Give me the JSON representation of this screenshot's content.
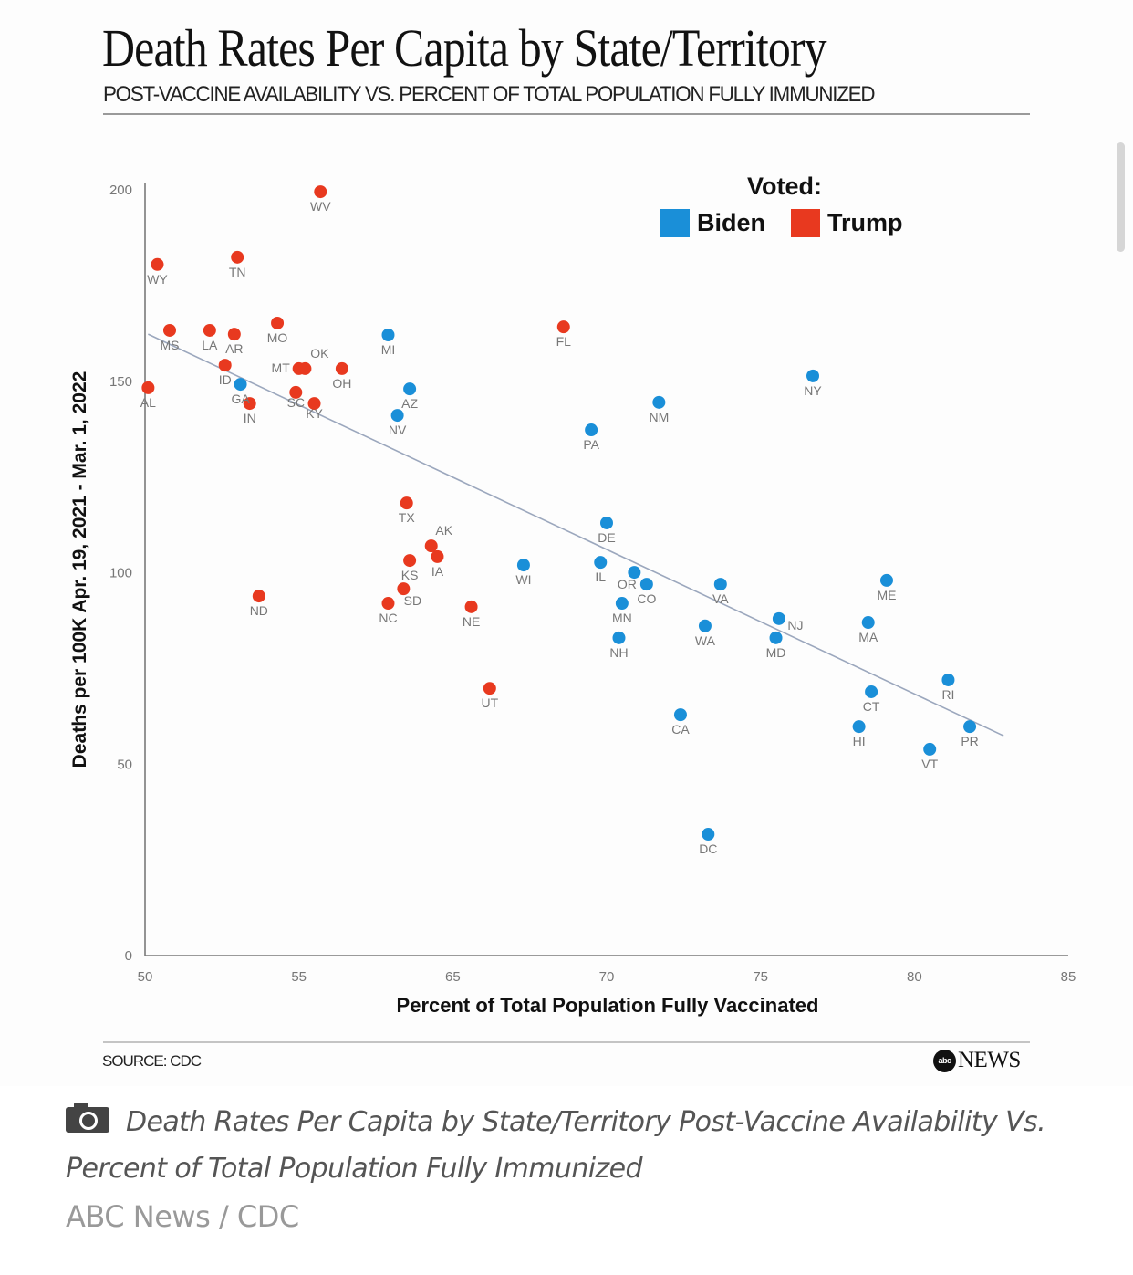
{
  "header": {
    "title": "Death Rates Per Capita by State/Territory",
    "subtitle": "POST-VACCINE AVAILABILITY VS. PERCENT OF TOTAL POPULATION FULLY IMMUNIZED"
  },
  "footer": {
    "source": "SOURCE: CDC",
    "logo_mark": "abc",
    "logo_text": "NEWS"
  },
  "caption": {
    "icon": "camera-icon",
    "text": "Death Rates Per Capita by State/Territory Post-Vaccine Availability Vs. Percent of Total Population Fully Immunized",
    "credit": "ABC News / CDC"
  },
  "chart_data": {
    "type": "scatter",
    "title": "Death Rates Per Capita by State/Territory",
    "subtitle": "POST-VACCINE AVAILABILITY VS. PERCENT OF TOTAL POPULATION FULLY IMMUNIZED",
    "xlabel": "Percent of Total Population Fully Vaccinated",
    "ylabel": "Deaths per 100K Apr. 19, 2021 - Mar. 1, 2022",
    "xlim": [
      50,
      85
    ],
    "ylim": [
      0,
      200
    ],
    "x_ticks": [
      50,
      55,
      60,
      65,
      70,
      75,
      80,
      85
    ],
    "x_tick_labels": [
      "50",
      "55",
      "65",
      "70",
      "75",
      "80",
      "85"
    ],
    "x_tick_label_positions": [
      50,
      55,
      60,
      65,
      70,
      75,
      80,
      85
    ],
    "x_tick_note": "tick labels printed as shown; '60' position is labeled '65', all later labels shifted",
    "y_ticks": [
      0,
      50,
      100,
      150,
      200
    ],
    "y_tick_labels": [
      "0",
      "50",
      "100",
      "150",
      "200"
    ],
    "grid": false,
    "legend": {
      "title": "Voted:",
      "placement": "top-right",
      "entries": [
        {
          "name": "Biden",
          "color": "#1a8fd8"
        },
        {
          "name": "Trump",
          "color": "#e8391f"
        }
      ]
    },
    "trendline": {
      "x": [
        50.1,
        77.9
      ],
      "y": [
        162.3,
        57.4
      ],
      "color": "#9ba7bd"
    },
    "series": [
      {
        "name": "Trump",
        "color": "#e8391f",
        "points": [
          {
            "label": "WV",
            "x": 55.7,
            "y": 199.5
          },
          {
            "label": "WY",
            "x": 50.4,
            "y": 180.5
          },
          {
            "label": "TN",
            "x": 53.0,
            "y": 182.4
          },
          {
            "label": "MS",
            "x": 50.8,
            "y": 163.3
          },
          {
            "label": "LA",
            "x": 52.1,
            "y": 163.3
          },
          {
            "label": "AR",
            "x": 52.9,
            "y": 162.3
          },
          {
            "label": "MO",
            "x": 54.3,
            "y": 165.2
          },
          {
            "label": "FL",
            "x": 63.6,
            "y": 164.2
          },
          {
            "label": "ID",
            "x": 52.6,
            "y": 154.2
          },
          {
            "label": "MT",
            "x": 55.0,
            "y": 153.3
          },
          {
            "label": "OK",
            "x": 55.2,
            "y": 153.3
          },
          {
            "label": "OH",
            "x": 56.4,
            "y": 153.3
          },
          {
            "label": "AL",
            "x": 50.1,
            "y": 148.3
          },
          {
            "label": "SC",
            "x": 54.9,
            "y": 147.1
          },
          {
            "label": "IN",
            "x": 53.4,
            "y": 144.2
          },
          {
            "label": "KY",
            "x": 55.5,
            "y": 144.2
          },
          {
            "label": "TX",
            "x": 58.5,
            "y": 118.2
          },
          {
            "label": "AK",
            "x": 59.3,
            "y": 107.0
          },
          {
            "label": "IA",
            "x": 59.5,
            "y": 104.2
          },
          {
            "label": "KS",
            "x": 58.6,
            "y": 103.2
          },
          {
            "label": "SD",
            "x": 58.4,
            "y": 95.8
          },
          {
            "label": "ND",
            "x": 53.7,
            "y": 93.9
          },
          {
            "label": "NC",
            "x": 57.9,
            "y": 92.0
          },
          {
            "label": "NE",
            "x": 60.6,
            "y": 91.1
          },
          {
            "label": "UT",
            "x": 61.2,
            "y": 69.8
          }
        ]
      },
      {
        "name": "Biden",
        "color": "#1a8fd8",
        "points": [
          {
            "label": "MI",
            "x": 57.9,
            "y": 162.1
          },
          {
            "label": "GA",
            "x": 53.1,
            "y": 149.2
          },
          {
            "label": "AZ",
            "x": 58.6,
            "y": 148.0
          },
          {
            "label": "NV",
            "x": 58.2,
            "y": 141.1
          },
          {
            "label": "NY",
            "x": 71.7,
            "y": 151.4
          },
          {
            "label": "NM",
            "x": 66.7,
            "y": 144.5
          },
          {
            "label": "PA",
            "x": 64.5,
            "y": 137.3
          },
          {
            "label": "DE",
            "x": 65.0,
            "y": 113.0
          },
          {
            "label": "WI",
            "x": 62.3,
            "y": 102.0
          },
          {
            "label": "IL",
            "x": 64.8,
            "y": 102.7
          },
          {
            "label": "OR",
            "x": 65.9,
            "y": 100.1
          },
          {
            "label": "CO",
            "x": 66.3,
            "y": 97.0
          },
          {
            "label": "VA",
            "x": 68.7,
            "y": 97.0
          },
          {
            "label": "ME",
            "x": 74.1,
            "y": 98.0
          },
          {
            "label": "MN",
            "x": 65.5,
            "y": 92.0
          },
          {
            "label": "NJ",
            "x": 70.6,
            "y": 88.0
          },
          {
            "label": "MA",
            "x": 73.5,
            "y": 87.0
          },
          {
            "label": "WA",
            "x": 68.2,
            "y": 86.1
          },
          {
            "label": "MD",
            "x": 70.5,
            "y": 83.0
          },
          {
            "label": "NH",
            "x": 65.4,
            "y": 83.0
          },
          {
            "label": "RI",
            "x": 76.1,
            "y": 72.0
          },
          {
            "label": "CT",
            "x": 73.6,
            "y": 68.9
          },
          {
            "label": "CA",
            "x": 67.4,
            "y": 62.9
          },
          {
            "label": "HI",
            "x": 73.2,
            "y": 59.8
          },
          {
            "label": "PR",
            "x": 76.8,
            "y": 59.8
          },
          {
            "label": "VT",
            "x": 75.5,
            "y": 53.9
          },
          {
            "label": "DC",
            "x": 68.3,
            "y": 31.7
          }
        ]
      }
    ]
  }
}
